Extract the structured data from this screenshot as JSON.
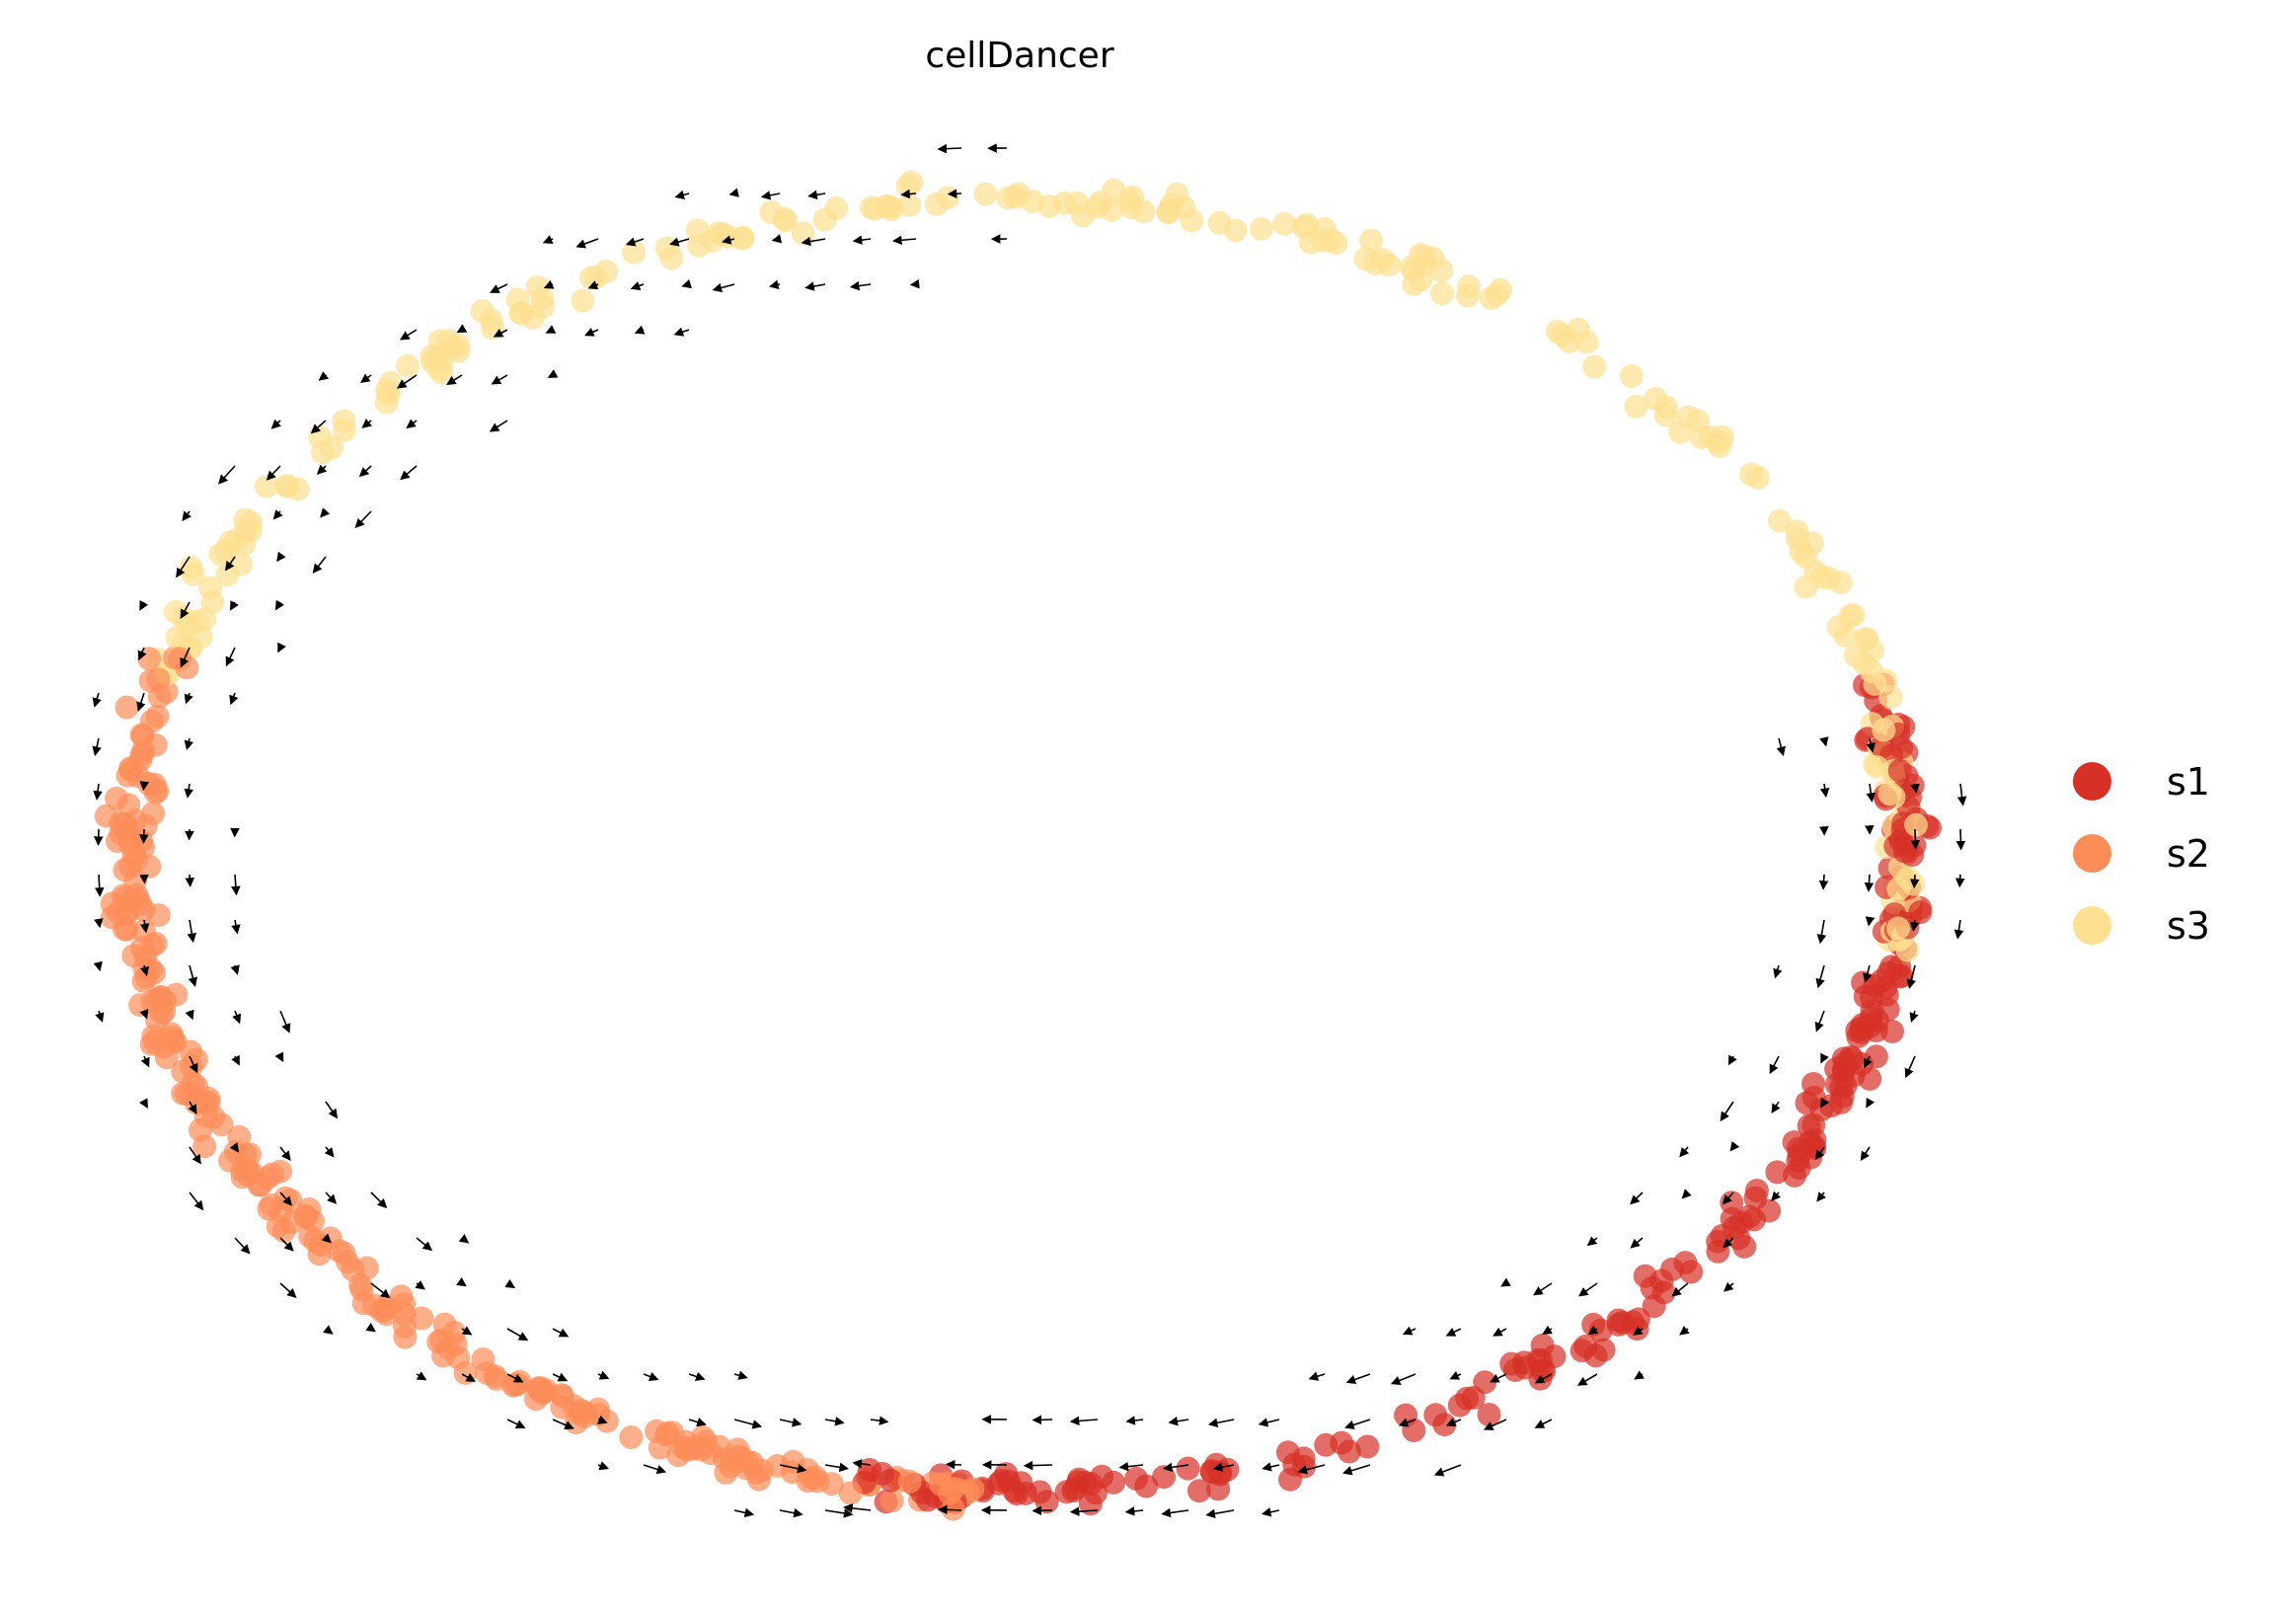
{
  "chart_data": {
    "type": "scatter",
    "title": "cellDancer",
    "xlabel": "",
    "ylabel": "",
    "axes_visible": false,
    "grid": false,
    "legend_position": "right",
    "legend": [
      {
        "label": "s1",
        "color": "#d73027"
      },
      {
        "label": "s2",
        "color": "#fc8d59"
      },
      {
        "label": "s3",
        "color": "#fee090"
      }
    ],
    "embedding_shape": "ring",
    "clusters": [
      {
        "name": "s1",
        "color": "#d73027",
        "angle_range_deg": [
          -100,
          15
        ],
        "count": 230
      },
      {
        "name": "s2",
        "color": "#fc8d59",
        "angle_range_deg": [
          163,
          268
        ],
        "count": 260
      },
      {
        "name": "s3",
        "color": "#fee090",
        "angle_range_deg": [
          -12,
          166
        ],
        "count": 230
      }
    ],
    "point_alpha": 0.7,
    "velocity_arrows": {
      "color": "#000000",
      "present": true
    }
  }
}
